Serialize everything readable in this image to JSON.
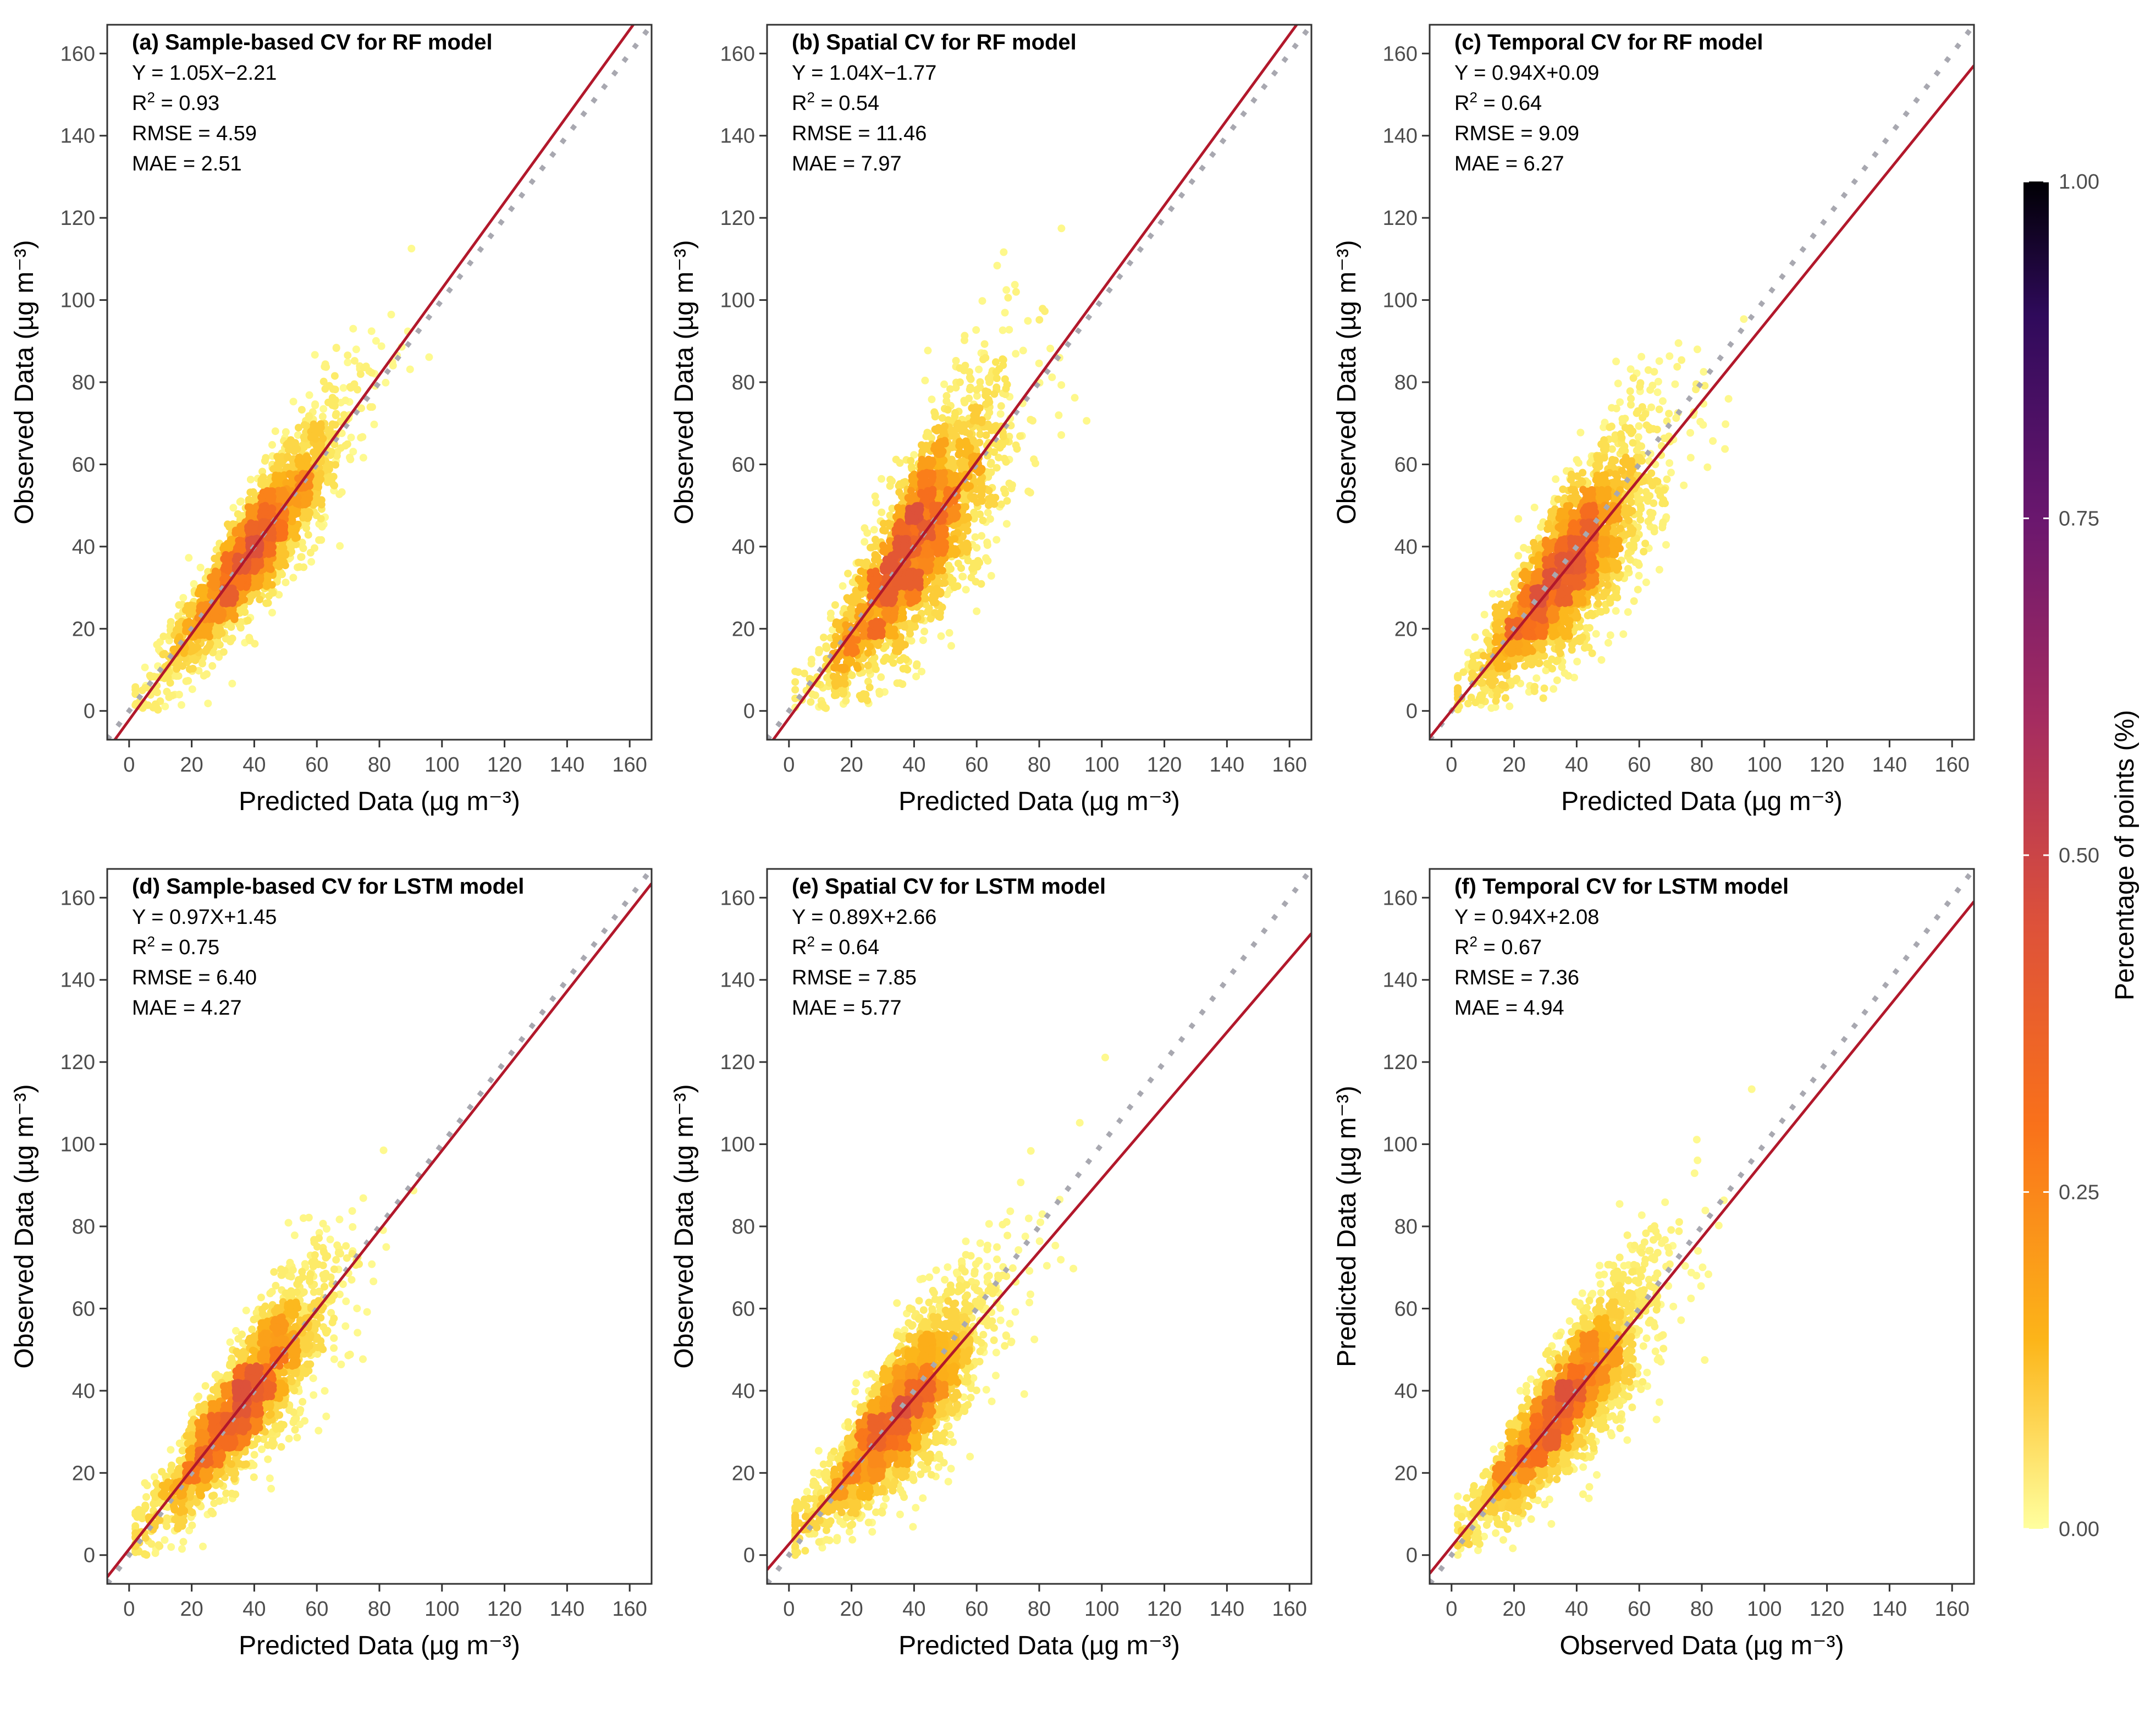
{
  "chart_data": [
    {
      "type": "scatter",
      "title": "(a) Sample-based CV for RF model",
      "stats": {
        "equation": "Y = 1.05X−2.21",
        "r2": "0.93",
        "rmse": "RMSE = 4.59",
        "mae": "MAE = 2.51"
      },
      "slope": 1.05,
      "intercept": -2.21,
      "xlabel": "Predicted Data (µg m⁻³)",
      "ylabel": "Observed Data (µg m⁻³)",
      "xlim": [
        -7,
        167
      ],
      "ylim": [
        -7,
        167
      ],
      "spread": 0.18,
      "center": 40
    },
    {
      "type": "scatter",
      "title": "(b) Spatial CV for RF model",
      "stats": {
        "equation": "Y = 1.04X−1.77",
        "r2": "0.54",
        "rmse": "RMSE = 11.46",
        "mae": "MAE = 7.97"
      },
      "slope": 1.04,
      "intercept": -1.77,
      "xlabel": "Predicted Data (µg m⁻³)",
      "ylabel": "Observed Data (µg m⁻³)",
      "xlim": [
        -7,
        167
      ],
      "ylim": [
        -7,
        167
      ],
      "spread": 0.42,
      "center": 40
    },
    {
      "type": "scatter",
      "title": "(c) Temporal CV for RF model",
      "stats": {
        "equation": "Y = 0.94X+0.09",
        "r2": "0.64",
        "rmse": "RMSE = 9.09",
        "mae": "MAE = 6.27"
      },
      "slope": 0.94,
      "intercept": 0.09,
      "xlabel": "Predicted Data (µg m⁻³)",
      "ylabel": "Observed Data (µg m⁻³)",
      "xlim": [
        -7,
        167
      ],
      "ylim": [
        -7,
        167
      ],
      "spread": 0.34,
      "center": 38
    },
    {
      "type": "scatter",
      "title": "(d) Sample-based CV for LSTM model",
      "stats": {
        "equation": "Y = 0.97X+1.45",
        "r2": "0.75",
        "rmse": "RMSE = 6.40",
        "mae": "MAE = 4.27"
      },
      "slope": 0.97,
      "intercept": 1.45,
      "xlabel": "Predicted Data (µg m⁻³)",
      "ylabel": "Observed Data (µg m⁻³)",
      "xlim": [
        -7,
        167
      ],
      "ylim": [
        -7,
        167
      ],
      "spread": 0.24,
      "center": 36
    },
    {
      "type": "scatter",
      "title": "(e) Spatial CV for LSTM model",
      "stats": {
        "equation": "Y = 0.89X+2.66",
        "r2": "0.64",
        "rmse": "RMSE = 7.85",
        "mae": "MAE = 5.77"
      },
      "slope": 0.89,
      "intercept": 2.66,
      "xlabel": "Predicted Data (µg m⁻³)",
      "ylabel": "Observed Data (µg m⁻³)",
      "xlim": [
        -7,
        167
      ],
      "ylim": [
        -7,
        167
      ],
      "spread": 0.3,
      "center": 36
    },
    {
      "type": "scatter",
      "title": "(f) Temporal CV for LSTM model",
      "stats": {
        "equation": "Y = 0.94X+2.08",
        "r2": "0.67",
        "rmse": "RMSE = 7.36",
        "mae": "MAE = 4.94"
      },
      "slope": 0.94,
      "intercept": 2.08,
      "xlabel": "Observed Data (µg m⁻³)",
      "ylabel": "Predicted Data (µg m⁻³)",
      "xlim": [
        -7,
        167
      ],
      "ylim": [
        -7,
        167
      ],
      "spread": 0.28,
      "center": 36
    }
  ],
  "ticks": [
    0,
    20,
    40,
    60,
    80,
    100,
    120,
    140,
    160
  ],
  "r2_prefix": "R",
  "r2_sup": "2",
  "r2_sep": " = ",
  "colorbar": {
    "title": "Percentage of points (%)",
    "ticks": [
      "0.00",
      "0.25",
      "0.50",
      "0.75",
      "1.00"
    ],
    "colors": [
      "#ffff9f",
      "#fcb519",
      "#f9711a",
      "#dd513a",
      "#a52c60",
      "#6a176e",
      "#2f0a5b",
      "#000004"
    ]
  },
  "colors": {
    "fit_line": "#b2182b",
    "identity_line": "#a8a8b0",
    "axis": "#333333"
  }
}
